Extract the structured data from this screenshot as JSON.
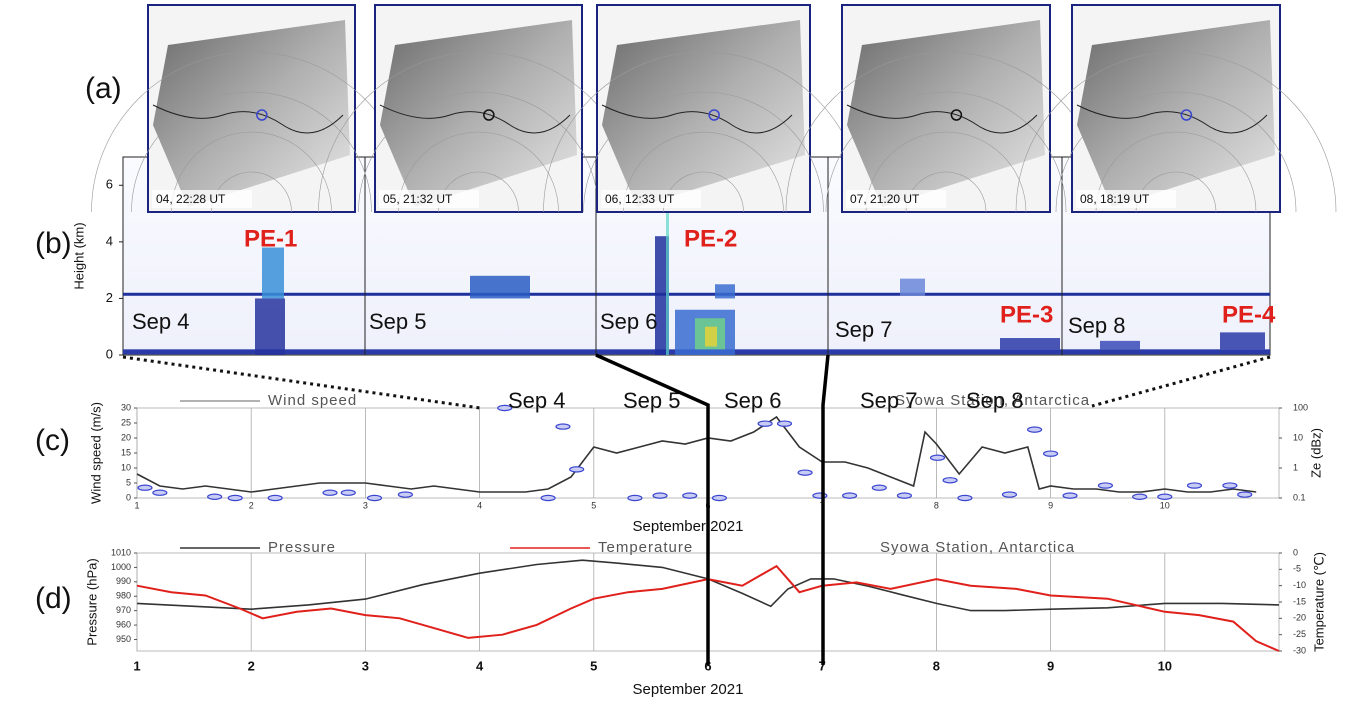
{
  "panel_labels": [
    "(a)",
    "(b)",
    "(c)",
    "(d)"
  ],
  "satellite_images": [
    {
      "caption": "04, 22:28 UT"
    },
    {
      "caption": "05, 21:32 UT"
    },
    {
      "caption": "06, 12:33 UT"
    },
    {
      "caption": "07, 21:20 UT"
    },
    {
      "caption": "08, 18:19 UT"
    }
  ],
  "lidar": {
    "ylabel": "Height (km)",
    "ylim": [
      0,
      7
    ],
    "yticks": [
      0,
      2,
      4,
      6
    ],
    "day_labels": [
      "Sep 4",
      "Sep 5",
      "Sep 6",
      "Sep 7",
      "Sep 8"
    ],
    "event_labels": [
      "PE-1",
      "PE-2",
      "PE-3",
      "PE-4"
    ]
  },
  "chart_data": [
    {
      "type": "line",
      "title": "Syowa Station, Antarctica",
      "xlabel": "September 2021",
      "ylabel": "Wind speed (m/s)",
      "y2label": "Ze (dBz)",
      "xlim": [
        1,
        11
      ],
      "xticks": [
        1,
        2,
        3,
        4,
        5,
        6,
        7,
        8,
        9,
        10
      ],
      "ylim": [
        0,
        30
      ],
      "yticks": [
        0,
        5,
        10,
        15,
        20,
        25,
        30
      ],
      "y2lim": [
        0.1,
        100
      ],
      "y2ticks": [
        0.1,
        1,
        10,
        100
      ],
      "y2_log": true,
      "grid": "x",
      "annotations": [
        "Sep 4",
        "Sep 5",
        "Sep 6",
        "Sep 7",
        "Sep 8"
      ],
      "series": [
        {
          "name": "Wind speed",
          "type": "line",
          "color": "#333333",
          "x": [
            1.0,
            1.2,
            1.4,
            1.6,
            1.8,
            2.0,
            2.2,
            2.4,
            2.6,
            2.8,
            3.0,
            3.2,
            3.4,
            3.6,
            3.8,
            4.0,
            4.2,
            4.4,
            4.6,
            4.8,
            5.0,
            5.2,
            5.4,
            5.6,
            5.8,
            6.0,
            6.2,
            6.4,
            6.6,
            6.8,
            7.0,
            7.2,
            7.4,
            7.6,
            7.8,
            7.9,
            8.0,
            8.2,
            8.4,
            8.6,
            8.8,
            8.9,
            9.0,
            9.2,
            9.4,
            9.6,
            9.8,
            10.0,
            10.2,
            10.4,
            10.6,
            10.8
          ],
          "values": [
            8,
            4,
            3,
            4,
            3,
            2,
            3,
            4,
            5,
            5,
            5,
            4,
            3,
            4,
            3,
            2,
            2,
            2,
            3,
            7,
            17,
            15,
            17,
            19,
            18,
            20,
            19,
            22,
            27,
            17,
            12,
            12,
            10,
            7,
            4,
            22,
            18,
            8,
            17,
            15,
            17,
            3,
            4,
            3,
            3,
            2,
            2,
            3,
            2,
            2,
            3,
            2
          ]
        },
        {
          "type": "scatter",
          "axis": "y2",
          "color": "#3a46d0",
          "x": [
            1.07,
            1.2,
            1.68,
            1.86,
            2.21,
            2.69,
            2.85,
            3.08,
            3.35,
            4.22,
            4.6,
            4.73,
            4.85,
            5.36,
            5.58,
            5.84,
            6.1,
            6.5,
            6.67,
            6.85,
            6.98,
            7.24,
            7.5,
            7.72,
            8.01,
            8.12,
            8.25,
            8.64,
            8.86,
            9.0,
            9.17,
            9.48,
            9.78,
            10.0,
            10.26,
            10.57,
            10.7
          ],
          "values": [
            0.22,
            0.15,
            0.11,
            0.1,
            0.1,
            0.15,
            0.15,
            0.1,
            0.13,
            100,
            0.1,
            24,
            0.9,
            0.1,
            0.12,
            0.12,
            0.1,
            30,
            30,
            0.7,
            0.12,
            0.12,
            0.22,
            0.12,
            2.2,
            0.39,
            0.1,
            0.13,
            19,
            3,
            0.12,
            0.26,
            0.11,
            0.11,
            0.26,
            0.26,
            0.13
          ]
        }
      ]
    },
    {
      "type": "line",
      "title": "Syowa Station, Antarctica",
      "xlabel": "September 2021",
      "ylabel": "Pressure (hPa)",
      "y2label": "Temperature (℃)",
      "xlim": [
        1,
        11
      ],
      "xticks": [
        1,
        2,
        3,
        4,
        5,
        6,
        7,
        8,
        9,
        10
      ],
      "ylim": [
        942,
        1010
      ],
      "yticks": [
        950,
        960,
        970,
        980,
        990,
        1000,
        1010
      ],
      "y2lim": [
        -30,
        0
      ],
      "y2ticks": [
        -30,
        -25,
        -20,
        -15,
        -10,
        -5,
        0
      ],
      "grid": "x",
      "series": [
        {
          "name": "Pressure",
          "type": "line",
          "color": "#333333",
          "x": [
            1,
            1.5,
            2,
            2.5,
            3,
            3.5,
            4,
            4.5,
            4.9,
            5.2,
            5.6,
            6,
            6.3,
            6.55,
            6.7,
            6.9,
            7.1,
            7.4,
            7.7,
            8,
            8.3,
            8.6,
            9,
            9.5,
            10,
            10.5,
            11
          ],
          "values": [
            975,
            973,
            971,
            974,
            978,
            988,
            996,
            1002,
            1005,
            1003,
            1000,
            992,
            982,
            973,
            985,
            992,
            992,
            987,
            981,
            975,
            970,
            970,
            971,
            972,
            975,
            975,
            974
          ]
        },
        {
          "name": "Temperature",
          "type": "line",
          "axis": "y2",
          "color": "#e0201b",
          "x": [
            1,
            1.3,
            1.6,
            1.9,
            2.1,
            2.4,
            2.7,
            3.0,
            3.3,
            3.6,
            3.9,
            4.2,
            4.5,
            4.8,
            5.0,
            5.3,
            5.6,
            6.0,
            6.3,
            6.6,
            6.8,
            7.0,
            7.3,
            7.6,
            8.0,
            8.3,
            8.7,
            9.0,
            9.5,
            10.0,
            10.3,
            10.6,
            10.8,
            11.0
          ],
          "values": [
            -10,
            -12,
            -13,
            -17,
            -20,
            -18,
            -17,
            -19,
            -20,
            -23,
            -26,
            -25,
            -22,
            -17,
            -14,
            -12,
            -11,
            -8,
            -10,
            -4,
            -12,
            -10,
            -9,
            -11,
            -8,
            -10,
            -11,
            -13,
            -14,
            -18,
            -19,
            -21,
            -27,
            -30
          ]
        }
      ]
    }
  ]
}
